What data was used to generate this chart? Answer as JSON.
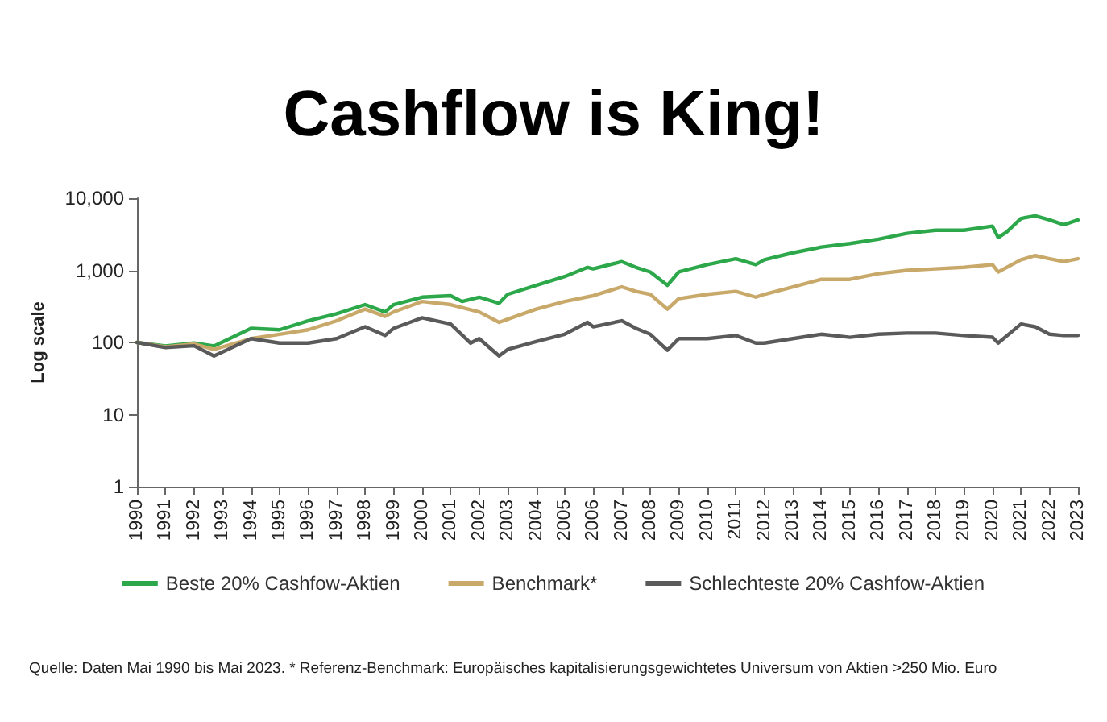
{
  "chart_data": {
    "type": "line",
    "title": "Cashflow is King!",
    "ylabel": "Log scale",
    "log": true,
    "grid": false,
    "legend": "bottom",
    "marker": "none",
    "line_style": "solid",
    "xlim": [
      1990,
      2023
    ],
    "xticks": [
      1990,
      1991,
      1992,
      1993,
      1994,
      1995,
      1996,
      1997,
      1998,
      1999,
      2000,
      2001,
      2002,
      2003,
      2004,
      2005,
      2006,
      2007,
      2008,
      2009,
      2010,
      2011,
      2012,
      2013,
      2014,
      2015,
      2016,
      2017,
      2018,
      2019,
      2020,
      2021,
      2022,
      2023
    ],
    "ylim": [
      1,
      10000
    ],
    "yticks": [
      1,
      10,
      100,
      {
        "value": 1000,
        "label": "1,000"
      },
      {
        "value": 10000,
        "label": "10,000"
      }
    ],
    "series": [
      {
        "name": "Beste 20% Cashfow-Aktien",
        "color": "#2ca84a",
        "x": [
          1990,
          1991,
          1992,
          1992.7,
          1994,
          1995,
          1996,
          1997,
          1998,
          1998.7,
          1999,
          2000,
          2001,
          2001.4,
          2002,
          2002.7,
          2003,
          2004,
          2005,
          2005.8,
          2006,
          2007,
          2007.5,
          2008,
          2008.6,
          2009,
          2010,
          2011,
          2011.7,
          2012,
          2013,
          2014,
          2015,
          2016,
          2017,
          2018,
          2019,
          2020,
          2020.2,
          2020.5,
          2021,
          2021.5,
          2022,
          2022.5,
          2023
        ],
        "values": [
          100,
          89,
          98,
          89,
          157,
          150,
          200,
          250,
          335,
          265,
          335,
          425,
          445,
          370,
          425,
          350,
          465,
          620,
          820,
          1100,
          1050,
          1320,
          1100,
          950,
          620,
          950,
          1200,
          1450,
          1200,
          1400,
          1750,
          2100,
          2350,
          2700,
          3250,
          3600,
          3600,
          4100,
          2850,
          3400,
          5250,
          5700,
          5000,
          4300,
          5000
        ]
      },
      {
        "name": "Benchmark*",
        "color": "#c8a96a",
        "x": [
          1990,
          1991,
          1992,
          1992.7,
          1994,
          1995,
          1996,
          1997,
          1998,
          1998.7,
          1999,
          2000,
          2001,
          2002,
          2002.7,
          2003,
          2004,
          2005,
          2006,
          2007,
          2007.5,
          2008,
          2008.6,
          2009,
          2010,
          2011,
          2011.7,
          2012,
          2013,
          2014,
          2015,
          2016,
          2017,
          2018,
          2019,
          2020,
          2020.2,
          2021,
          2021.5,
          2022,
          2022.5,
          2023
        ],
        "values": [
          100,
          87,
          95,
          80,
          113,
          130,
          150,
          200,
          290,
          230,
          265,
          370,
          335,
          265,
          190,
          210,
          290,
          370,
          445,
          590,
          510,
          465,
          290,
          405,
          465,
          510,
          425,
          465,
          590,
          750,
          750,
          900,
          1000,
          1050,
          1100,
          1200,
          950,
          1400,
          1600,
          1450,
          1320,
          1450
        ]
      },
      {
        "name": "Schlechteste 20% Cashfow-Aktien",
        "color": "#5a5a5a",
        "x": [
          1990,
          1991,
          1992,
          1992.7,
          1994,
          1995,
          1996,
          1997,
          1998,
          1998.7,
          1999,
          2000,
          2001,
          2001.7,
          2002,
          2002.7,
          2003,
          2004,
          2005,
          2005.8,
          2006,
          2007,
          2007.5,
          2008,
          2008.6,
          2009,
          2010,
          2011,
          2011.7,
          2012,
          2013,
          2014,
          2015,
          2016,
          2017,
          2018,
          2019,
          2020,
          2020.2,
          2021,
          2021.5,
          2022,
          2022.5,
          2023
        ],
        "values": [
          100,
          85,
          90,
          65,
          113,
          98,
          98,
          113,
          165,
          125,
          157,
          220,
          180,
          98,
          113,
          65,
          80,
          103,
          130,
          190,
          165,
          200,
          157,
          130,
          78,
          113,
          113,
          125,
          98,
          98,
          113,
          130,
          118,
          130,
          135,
          135,
          125,
          118,
          98,
          180,
          165,
          130,
          125,
          125
        ]
      }
    ],
    "annotations": [
      "Quelle: Daten Mai 1990 bis Mai 2023. * Referenz-Benchmark: Europäisches kapitalisierungsgewichtetes Universum von Aktien >250 Mio. Euro"
    ]
  }
}
